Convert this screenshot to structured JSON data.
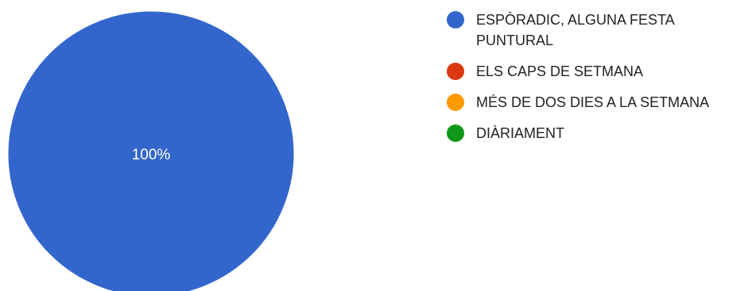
{
  "chart_data": {
    "type": "pie",
    "title": "",
    "categories": [
      "ESPÒRADIC, ALGUNA FESTA PUNTURAL",
      "ELS CAPS DE SETMANA",
      "MÉS DE DOS DIES A LA SETMANA",
      "DIÀRIAMENT"
    ],
    "values": [
      100,
      0,
      0,
      0
    ],
    "slice_labels": [
      "100%",
      "",
      "",
      ""
    ],
    "colors": [
      "#3366cc",
      "#dc3912",
      "#ff9900",
      "#109618"
    ],
    "legend": {
      "position": "right"
    }
  }
}
